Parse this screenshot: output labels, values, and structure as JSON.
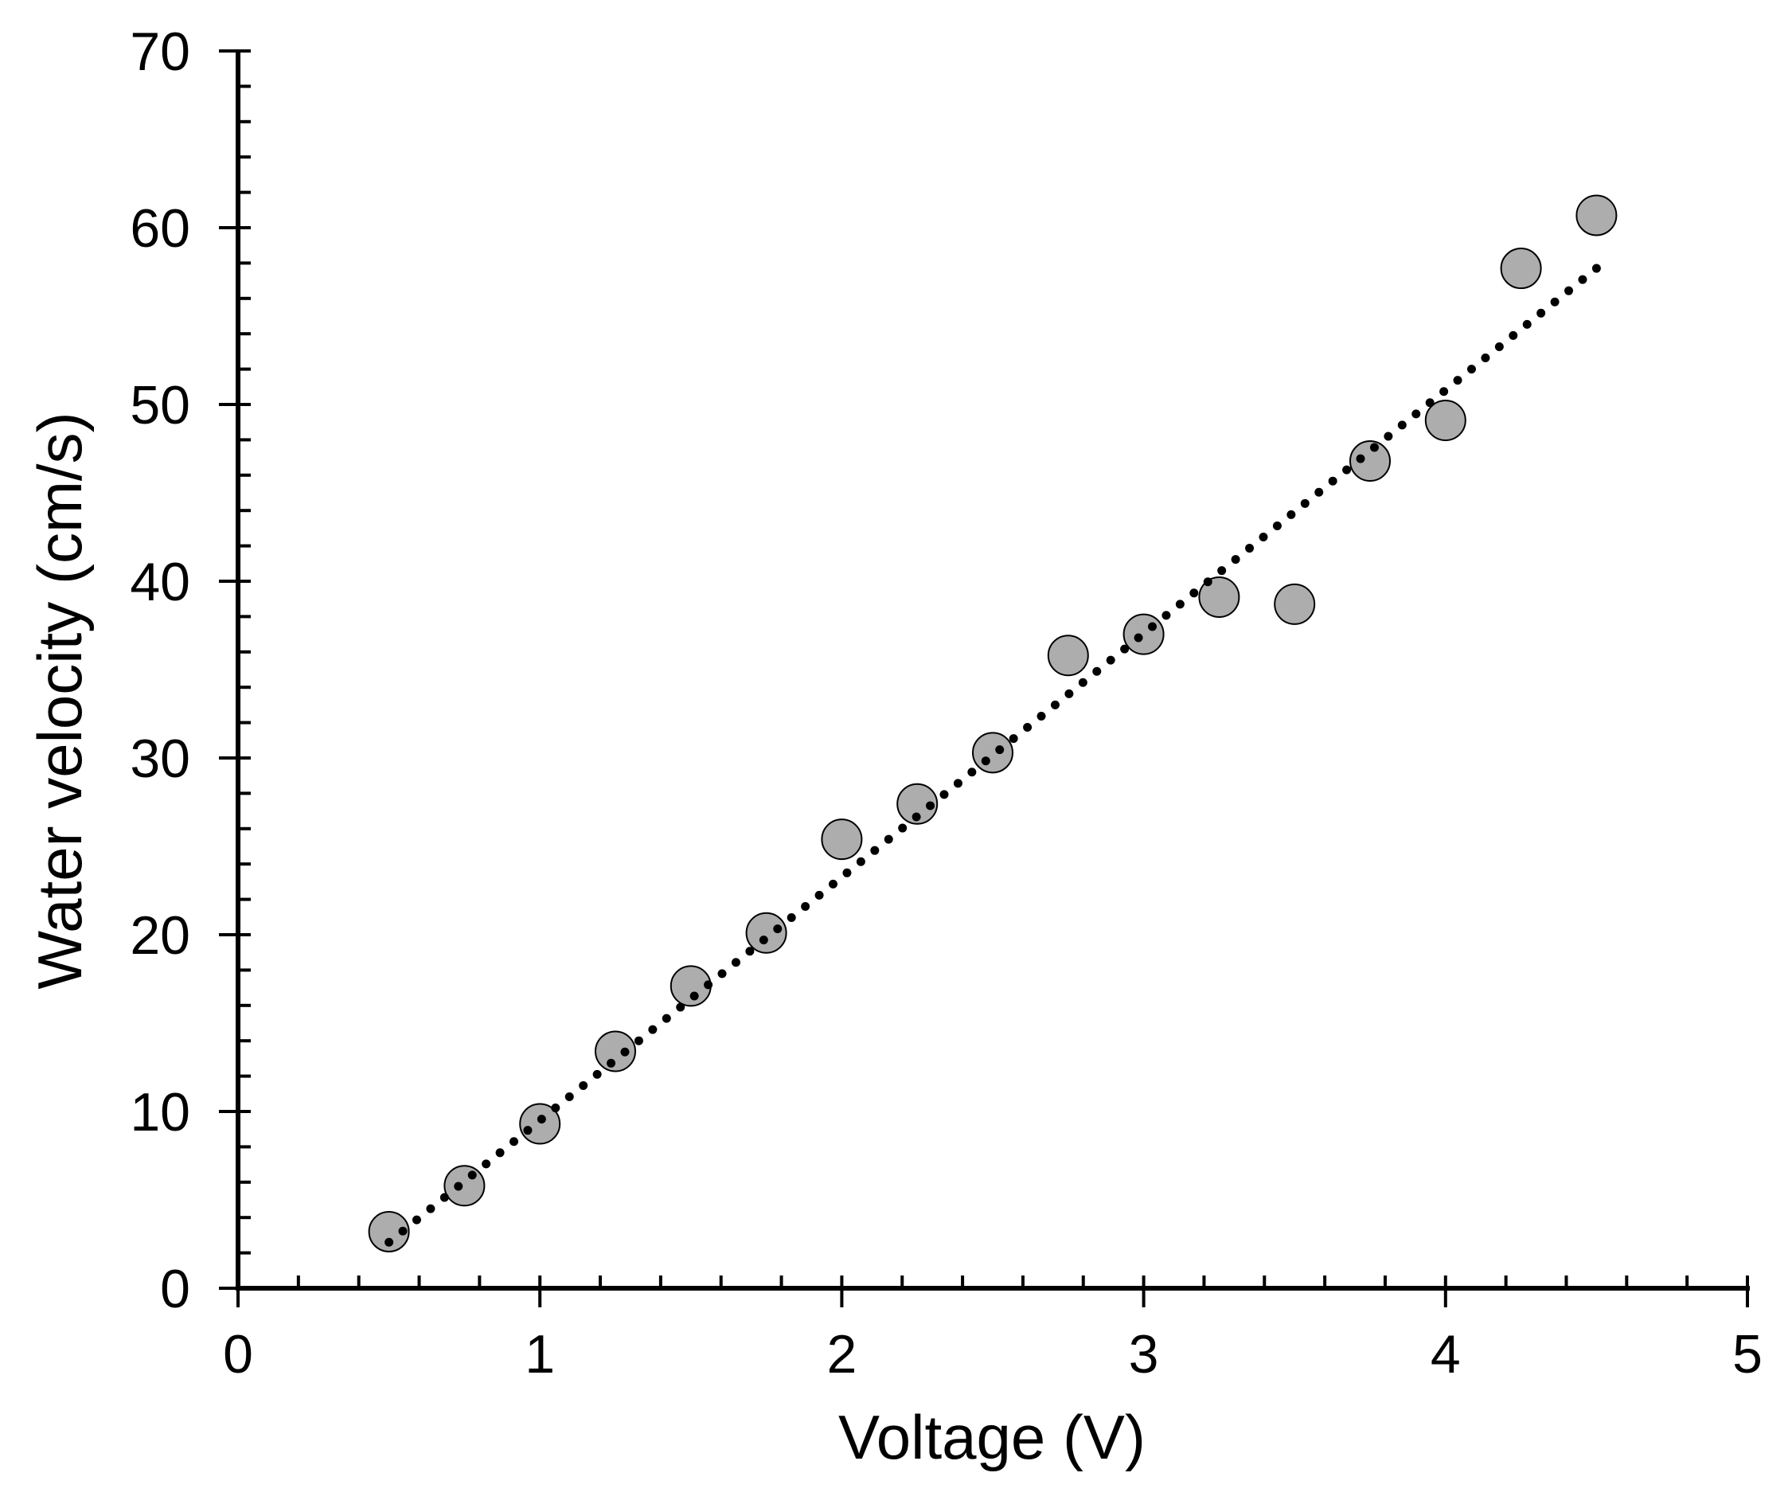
{
  "chart_data": {
    "type": "scatter",
    "xlabel": "Voltage (V)",
    "ylabel": "Water velocity (cm/s)",
    "xlim": [
      0,
      5
    ],
    "ylim": [
      0,
      70
    ],
    "x_ticks": [
      0,
      1,
      2,
      3,
      4,
      5
    ],
    "y_ticks": [
      0,
      10,
      20,
      30,
      40,
      50,
      60,
      70
    ],
    "x_tick_labels": [
      "0",
      "1",
      "2",
      "3",
      "4",
      "5"
    ],
    "y_tick_labels": [
      "0",
      "10",
      "20",
      "30",
      "40",
      "50",
      "60",
      "70"
    ],
    "x_minor_step": 0.2,
    "y_minor_step": 2,
    "grid": false,
    "legend": "none",
    "series": [
      {
        "marker": "circle",
        "color": "#a6a6a6",
        "edge_color": "#000000",
        "points": [
          {
            "x": 0.5,
            "y": 3.2
          },
          {
            "x": 0.75,
            "y": 5.8
          },
          {
            "x": 1.0,
            "y": 9.3
          },
          {
            "x": 1.25,
            "y": 13.4
          },
          {
            "x": 1.5,
            "y": 17.1
          },
          {
            "x": 1.75,
            "y": 20.1
          },
          {
            "x": 2.0,
            "y": 25.4
          },
          {
            "x": 2.25,
            "y": 27.4
          },
          {
            "x": 2.5,
            "y": 30.3
          },
          {
            "x": 2.75,
            "y": 35.8
          },
          {
            "x": 3.0,
            "y": 37.0
          },
          {
            "x": 3.25,
            "y": 39.1
          },
          {
            "x": 3.5,
            "y": 38.7
          },
          {
            "x": 3.75,
            "y": 46.8
          },
          {
            "x": 4.0,
            "y": 49.1
          },
          {
            "x": 4.25,
            "y": 57.7
          },
          {
            "x": 4.5,
            "y": 60.7
          }
        ]
      }
    ],
    "trendline": {
      "style": "dotted",
      "color": "#000000",
      "start": {
        "x": 0.5,
        "y": 2.6
      },
      "end": {
        "x": 4.5,
        "y": 57.7
      }
    }
  }
}
